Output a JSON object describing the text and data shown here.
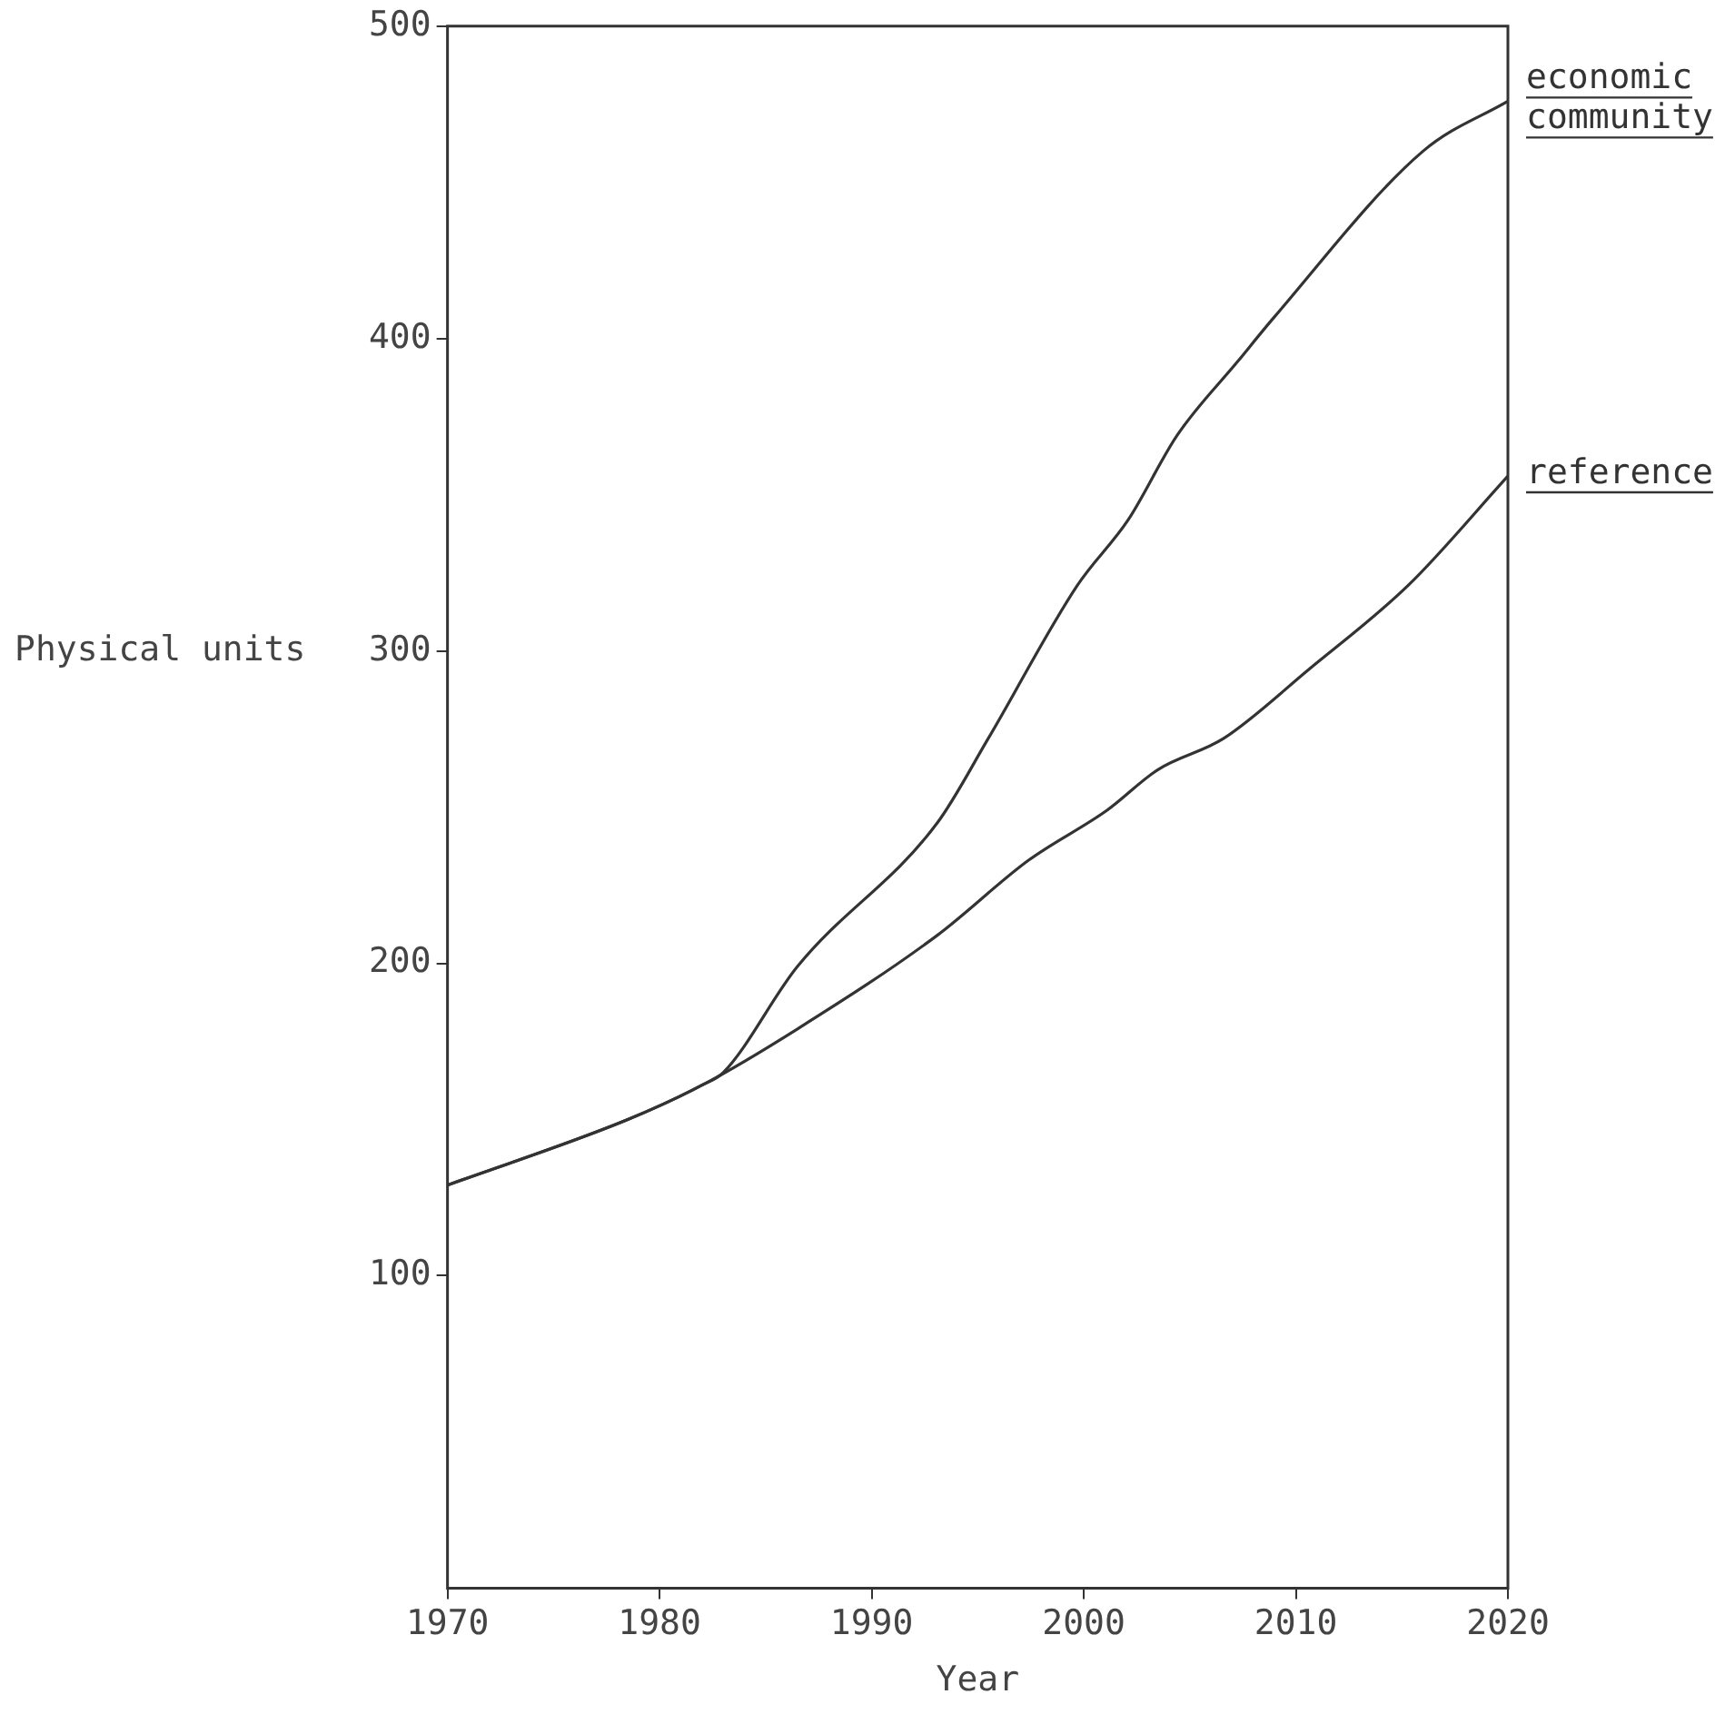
{
  "chart_data": {
    "type": "line",
    "xlabel": "Year",
    "ylabel": "Physical units",
    "xlim": [
      1970,
      2020
    ],
    "xticks": [
      1970,
      1980,
      1990,
      2000,
      2010,
      2020
    ],
    "ylim": [
      0,
      500
    ],
    "yticks": [
      100,
      200,
      300,
      400,
      500
    ],
    "grid": false,
    "legend": false,
    "marker": "none",
    "line_style": "solid",
    "series": [
      {
        "name": "economic community",
        "color": "#333333",
        "x": [
          1970,
          1978.5,
          1982,
          1983,
          1986.5,
          1993.1,
          1995.5,
          1999.7,
          2002.1,
          2004.4,
          2007.3,
          2009,
          2016,
          2020
        ],
        "values": [
          129,
          150,
          161,
          165,
          199,
          245,
          272,
          321,
          342,
          369,
          393,
          407,
          460,
          476
        ]
      },
      {
        "name": "reference",
        "color": "#333333",
        "x": [
          1970,
          1978.5,
          1982,
          1986.5,
          1993.1,
          1997.4,
          2001.1,
          2003.5,
          2006.6,
          2010.6,
          2015.3,
          2020
        ],
        "values": [
          129,
          150,
          161,
          179,
          209,
          233,
          249,
          262,
          272,
          294,
          321,
          356
        ]
      }
    ]
  }
}
